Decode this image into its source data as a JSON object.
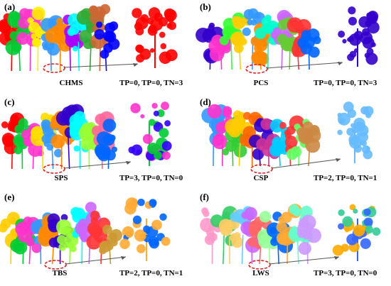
{
  "figure": {
    "panels": [
      {
        "label": "(a)",
        "method": "CHMS",
        "metrics": "TP=0, TP=0, TN=3",
        "colors": [
          "#ff0000",
          "#00cc33",
          "#ff33cc",
          "#ffee00",
          "#3399ff",
          "#ff8800",
          "#aa00ff",
          "#00ffff",
          "#33aa33",
          "#cc6633",
          "#0000ff",
          "#66ff66"
        ],
        "crop_colors": [
          "#ff0000"
        ]
      },
      {
        "label": "(b)",
        "method": "PCS",
        "metrics": "TP=0, TP=0, TN=3",
        "colors": [
          "#3300cc",
          "#ff33cc",
          "#33ff33",
          "#ffcc00",
          "#3399ff",
          "#ff8800",
          "#00ffcc",
          "#cc66ff",
          "#66cc33",
          "#ff3333",
          "#0066ff",
          "#9900ff"
        ],
        "crop_colors": [
          "#3300cc"
        ]
      },
      {
        "label": "(c)",
        "method": "SPS",
        "metrics": "TP=3, TP=0, TN=0",
        "colors": [
          "#ff0000",
          "#00cc33",
          "#ff33cc",
          "#ffdd00",
          "#3399ff",
          "#ff8800",
          "#3300cc",
          "#00ffff",
          "#99ff33",
          "#ff6699",
          "#0066ff",
          "#33aa33"
        ],
        "crop_colors": [
          "#3300ff",
          "#ff33cc",
          "#00cc33"
        ]
      },
      {
        "label": "(d)",
        "method": "CSP",
        "metrics": "TP=2, TP=0, TN=1",
        "colors": [
          "#3399ff",
          "#ff33cc",
          "#33cc33",
          "#ffcc00",
          "#ff6600",
          "#3300cc",
          "#cc3399",
          "#00ccff",
          "#ff3333",
          "#66ff66",
          "#cc8844",
          "#00cc99"
        ],
        "crop_colors": [
          "#66bbff"
        ]
      },
      {
        "label": "(e)",
        "method": "TBS",
        "metrics": "TP=2, TP=0, TN=1",
        "colors": [
          "#ffcc00",
          "#00cc33",
          "#ff33cc",
          "#3399ff",
          "#ff8800",
          "#3300cc",
          "#99ff33",
          "#00ffff",
          "#cc66ff",
          "#ff3333",
          "#cc9933",
          "#66ccff"
        ],
        "crop_colors": [
          "#0066ff",
          "#ffaa33"
        ]
      },
      {
        "label": "(f)",
        "method": "LWS",
        "metrics": "TP=3, TP=0, TN=0",
        "colors": [
          "#ff99cc",
          "#33cc66",
          "#ffcc66",
          "#66ccff",
          "#cc66ff",
          "#ff6666",
          "#99ff99",
          "#0066ff",
          "#ffaa33",
          "#66ffcc",
          "#cc99ff",
          "#ff33aa"
        ],
        "crop_colors": [
          "#ffaa00",
          "#33cc99",
          "#3366ff"
        ]
      }
    ]
  }
}
